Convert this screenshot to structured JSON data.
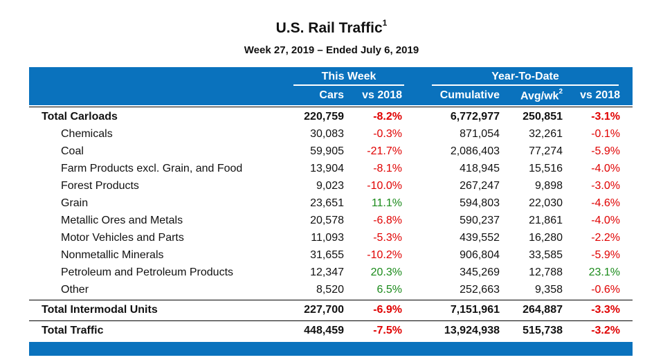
{
  "title": "U.S. Rail Traffic",
  "title_sup": "1",
  "subtitle": "Week 27, 2019 – Ended July 6, 2019",
  "groups": {
    "this_week": "This Week",
    "ytd": "Year-To-Date"
  },
  "columns": {
    "cars": "Cars",
    "vs2018_week": "vs 2018",
    "cumulative": "Cumulative",
    "avgwk": "Avg/wk",
    "avgwk_sup": "2",
    "vs2018_ytd": "vs 2018"
  },
  "colors": {
    "band": "#0a72bd",
    "negative": "#e00000",
    "positive": "#1a8a1a"
  },
  "rows": [
    {
      "name": "Total Carloads",
      "cars": "220,759",
      "vs_week": "-8.2%",
      "cumulative": "6,772,977",
      "avg": "250,851",
      "vs_ytd": "-3.1%"
    },
    {
      "name": "Chemicals",
      "cars": "30,083",
      "vs_week": "-0.3%",
      "cumulative": "871,054",
      "avg": "32,261",
      "vs_ytd": "-0.1%"
    },
    {
      "name": "Coal",
      "cars": "59,905",
      "vs_week": "-21.7%",
      "cumulative": "2,086,403",
      "avg": "77,274",
      "vs_ytd": "-5.9%"
    },
    {
      "name": "Farm Products excl. Grain, and Food",
      "cars": "13,904",
      "vs_week": "-8.1%",
      "cumulative": "418,945",
      "avg": "15,516",
      "vs_ytd": "-4.0%"
    },
    {
      "name": "Forest Products",
      "cars": "9,023",
      "vs_week": "-10.0%",
      "cumulative": "267,247",
      "avg": "9,898",
      "vs_ytd": "-3.0%"
    },
    {
      "name": "Grain",
      "cars": "23,651",
      "vs_week": "11.1%",
      "cumulative": "594,803",
      "avg": "22,030",
      "vs_ytd": "-4.6%"
    },
    {
      "name": "Metallic Ores and Metals",
      "cars": "20,578",
      "vs_week": "-6.8%",
      "cumulative": "590,237",
      "avg": "21,861",
      "vs_ytd": "-4.0%"
    },
    {
      "name": "Motor Vehicles and Parts",
      "cars": "11,093",
      "vs_week": "-5.3%",
      "cumulative": "439,552",
      "avg": "16,280",
      "vs_ytd": "-2.2%"
    },
    {
      "name": "Nonmetallic Minerals",
      "cars": "31,655",
      "vs_week": "-10.2%",
      "cumulative": "906,804",
      "avg": "33,585",
      "vs_ytd": "-5.9%"
    },
    {
      "name": "Petroleum and Petroleum Products",
      "cars": "12,347",
      "vs_week": "20.3%",
      "cumulative": "345,269",
      "avg": "12,788",
      "vs_ytd": "23.1%"
    },
    {
      "name": "Other",
      "cars": "8,520",
      "vs_week": "6.5%",
      "cumulative": "252,663",
      "avg": "9,358",
      "vs_ytd": "-0.6%"
    },
    {
      "name": "Total Intermodal Units",
      "cars": "227,700",
      "vs_week": "-6.9%",
      "cumulative": "7,151,961",
      "avg": "264,887",
      "vs_ytd": "-3.3%"
    },
    {
      "name": "Total Traffic",
      "cars": "448,459",
      "vs_week": "-7.5%",
      "cumulative": "13,924,938",
      "avg": "515,738",
      "vs_ytd": "-3.2%"
    }
  ]
}
